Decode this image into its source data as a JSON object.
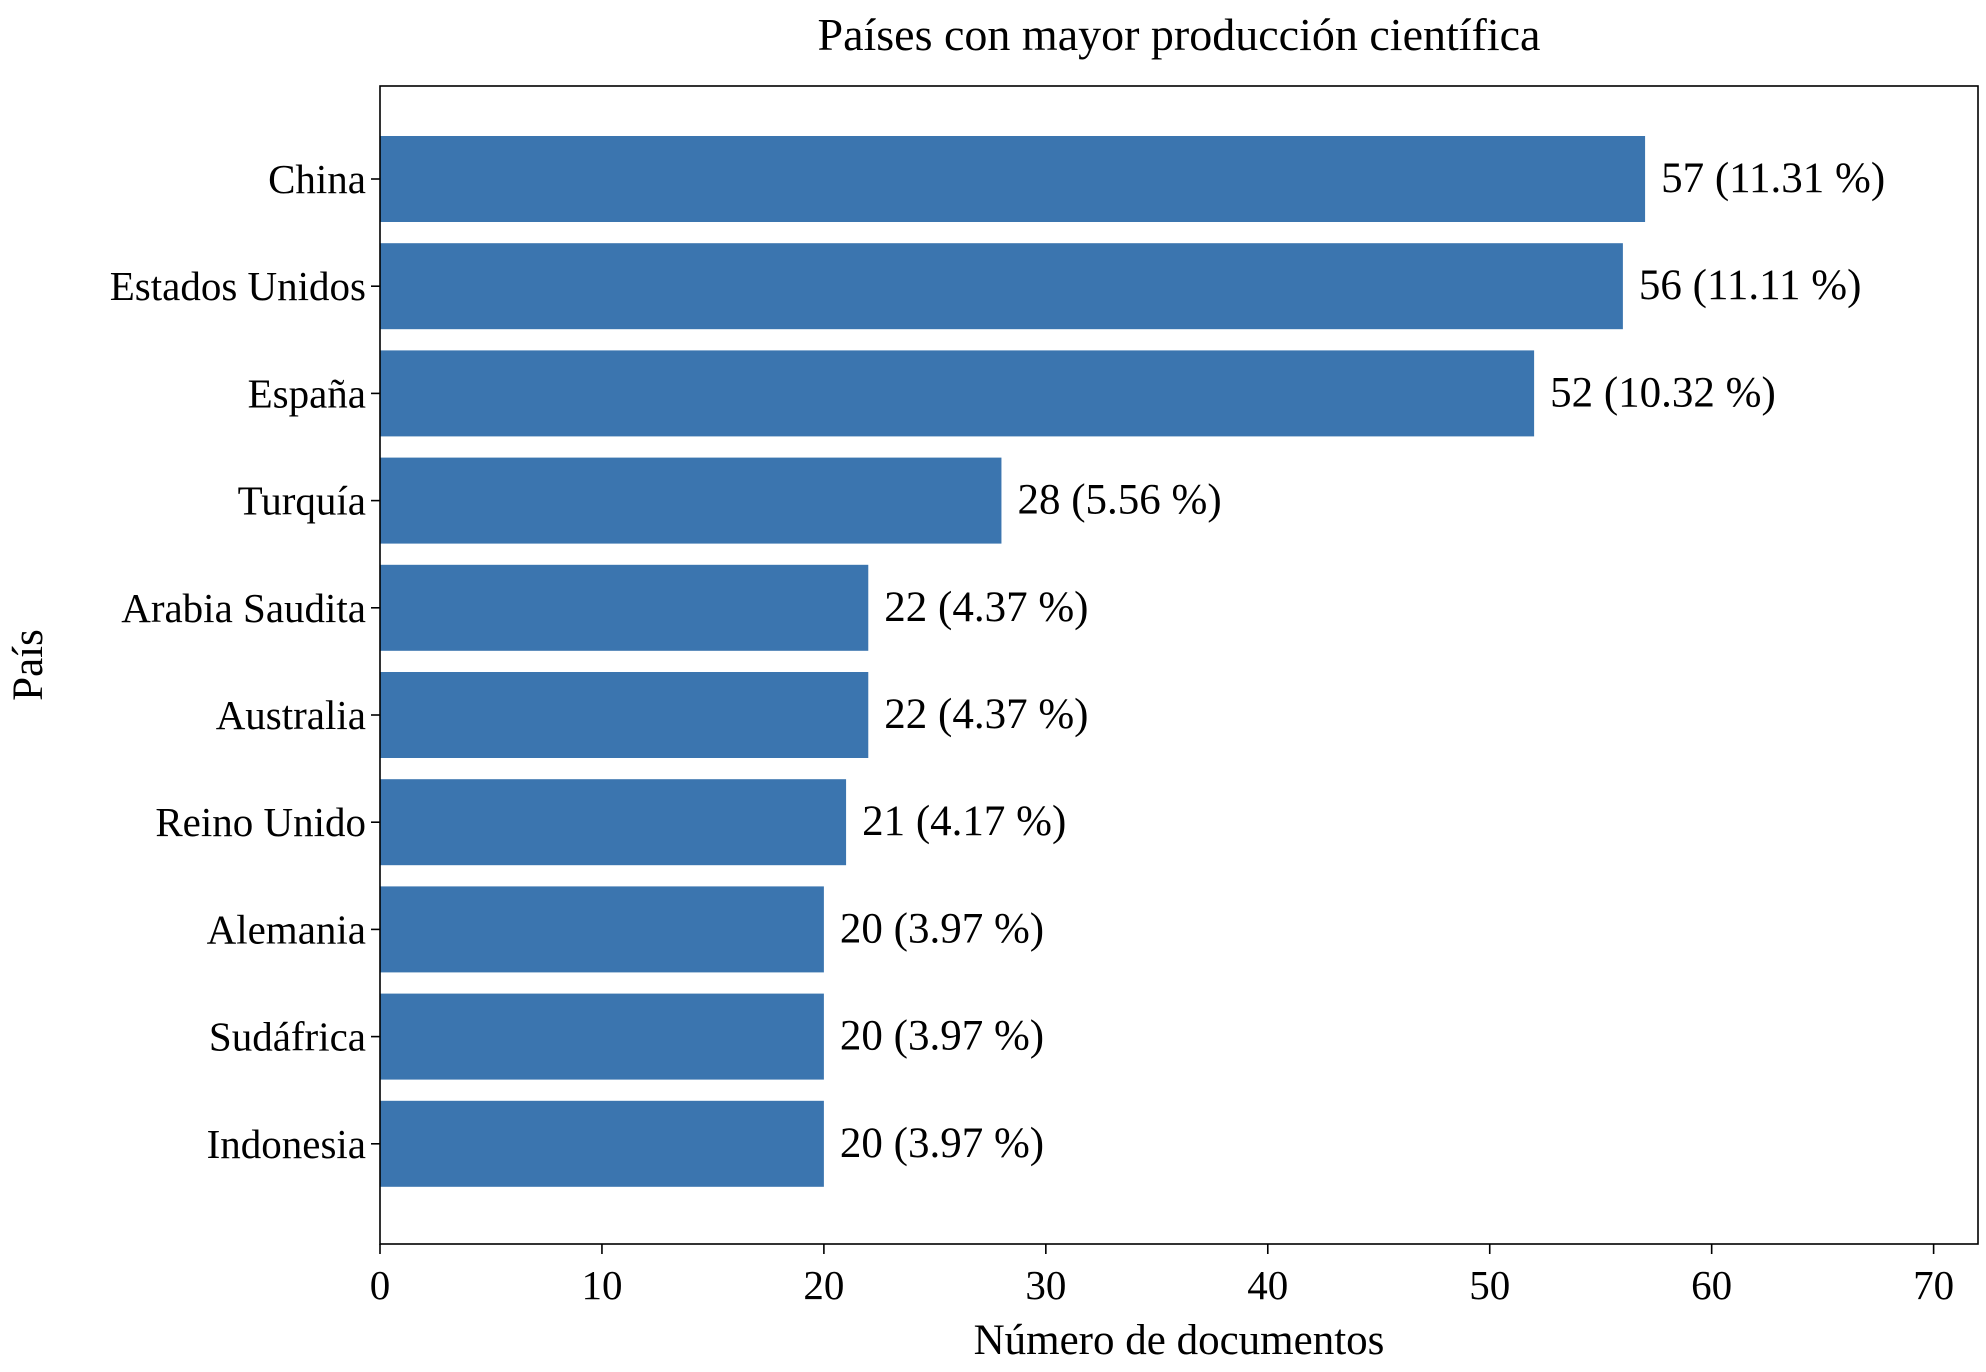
{
  "chart_data": {
    "type": "bar",
    "orientation": "horizontal",
    "title": "Países con mayor producción científica",
    "xlabel": "Número de documentos",
    "ylabel": "País",
    "categories": [
      "China",
      "Estados Unidos",
      "España",
      "Turquía",
      "Arabia Saudita",
      "Australia",
      "Reino Unido",
      "Alemania",
      "Sudáfrica",
      "Indonesia"
    ],
    "values": [
      57,
      56,
      52,
      28,
      22,
      22,
      21,
      20,
      20,
      20
    ],
    "data_labels": [
      "57 (11.31 %)",
      "56 (11.11 %)",
      "52 (10.32 %)",
      "28 (5.56 %)",
      "22 (4.37 %)",
      "22 (4.37 %)",
      "21 (4.17 %)",
      "20 (3.97 %)",
      "20 (3.97 %)",
      "20 (3.97 %)"
    ],
    "xlim": [
      0,
      72
    ],
    "xticks": [
      0,
      10,
      20,
      30,
      40,
      50,
      60,
      70
    ],
    "xtick_labels": [
      "0",
      "10",
      "20",
      "30",
      "40",
      "50",
      "60",
      "70"
    ],
    "grid": false,
    "legend": "none",
    "bar_color": "#3b75af"
  }
}
